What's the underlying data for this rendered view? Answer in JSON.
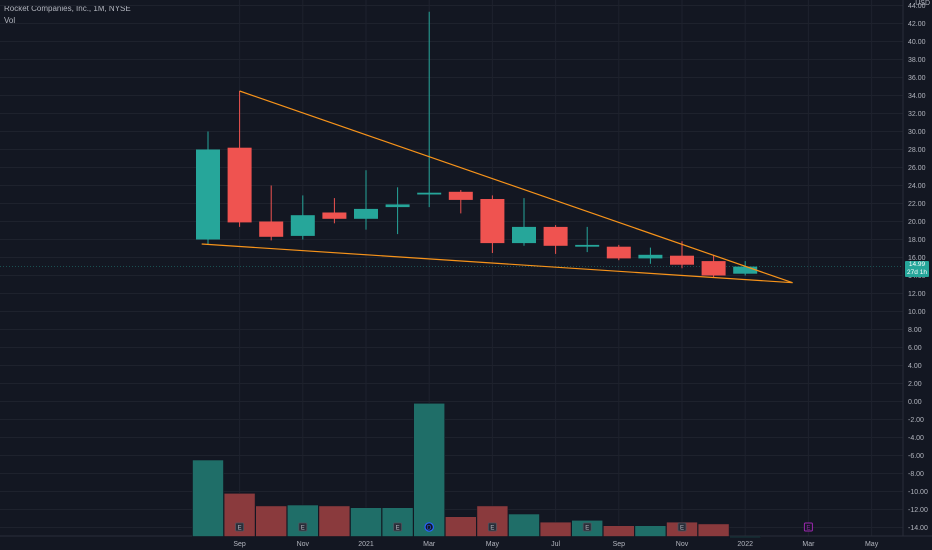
{
  "header": {
    "title": "Rocket Companies, Inc., 1M, NYSE",
    "volume_label": "Vol"
  },
  "axis": {
    "currency": "USD",
    "current_price": "14.99",
    "countdown": "27d 1h"
  },
  "colors": {
    "background": "#131722",
    "up": "#26a69a",
    "down": "#ef5350",
    "trendline": "#f7931a",
    "text": "#b2b5be",
    "event_earnings": "#b2b5be",
    "event_dividend": "#2962ff",
    "event_future": "#9c27b0"
  },
  "chart_data": {
    "type": "candlestick",
    "title": "Rocket Companies, Inc., 1M, NYSE",
    "x_tick_labels": [
      "Sep",
      "Nov",
      "2021",
      "Mar",
      "May",
      "Jul",
      "Sep",
      "Nov",
      "2022",
      "Mar",
      "May"
    ],
    "y_tick_labels": [
      "44.00",
      "42.00",
      "40.00",
      "38.00",
      "36.00",
      "34.00",
      "32.00",
      "30.00",
      "28.00",
      "26.00",
      "24.00",
      "22.00",
      "20.00",
      "18.00",
      "16.00",
      "14.00",
      "12.00",
      "10.00",
      "8.00",
      "6.00",
      "4.00",
      "2.00",
      "0.00",
      "-2.00",
      "-4.00",
      "-6.00",
      "-8.00",
      "-10.00",
      "-12.00",
      "-14.00"
    ],
    "ylim": [
      -15,
      44
    ],
    "candles": [
      {
        "month": "Aug 2020",
        "open": 18.0,
        "high": 30.0,
        "low": 17.5,
        "close": 28.0
      },
      {
        "month": "Sep 2020",
        "open": 28.2,
        "high": 34.5,
        "low": 19.4,
        "close": 19.9
      },
      {
        "month": "Oct 2020",
        "open": 20.0,
        "high": 24.0,
        "low": 17.9,
        "close": 18.3
      },
      {
        "month": "Nov 2020",
        "open": 18.4,
        "high": 22.9,
        "low": 18.0,
        "close": 20.7
      },
      {
        "month": "Dec 2020",
        "open": 21.0,
        "high": 22.6,
        "low": 19.8,
        "close": 20.3
      },
      {
        "month": "Jan 2021",
        "open": 20.3,
        "high": 25.7,
        "low": 19.1,
        "close": 21.4
      },
      {
        "month": "Feb 2021",
        "open": 21.6,
        "high": 23.8,
        "low": 18.6,
        "close": 21.9
      },
      {
        "month": "Mar 2021",
        "open": 23.0,
        "high": 43.3,
        "low": 21.6,
        "close": 23.2
      },
      {
        "month": "Apr 2021",
        "open": 23.3,
        "high": 23.5,
        "low": 20.9,
        "close": 22.4
      },
      {
        "month": "May 2021",
        "open": 22.5,
        "high": 22.9,
        "low": 16.5,
        "close": 17.6
      },
      {
        "month": "Jun 2021",
        "open": 17.6,
        "high": 22.6,
        "low": 17.3,
        "close": 19.4
      },
      {
        "month": "Jul 2021",
        "open": 19.4,
        "high": 19.6,
        "low": 16.4,
        "close": 17.3
      },
      {
        "month": "Aug 2021",
        "open": 17.2,
        "high": 19.4,
        "low": 16.6,
        "close": 17.4
      },
      {
        "month": "Sep 2021",
        "open": 17.2,
        "high": 17.4,
        "low": 15.7,
        "close": 15.9
      },
      {
        "month": "Oct 2021",
        "open": 15.9,
        "high": 17.1,
        "low": 15.3,
        "close": 16.3
      },
      {
        "month": "Nov 2021",
        "open": 16.2,
        "high": 17.8,
        "low": 14.8,
        "close": 15.2
      },
      {
        "month": "Dec 2021",
        "open": 15.6,
        "high": 16.3,
        "low": 13.8,
        "close": 14.0
      },
      {
        "month": "Jan 2022",
        "open": 14.2,
        "high": 15.6,
        "low": 14.0,
        "close": 14.99
      }
    ],
    "volume_bars": [
      {
        "month": "Aug 2020",
        "top": -6.5,
        "direction": "up"
      },
      {
        "month": "Sep 2020",
        "top": -10.2,
        "direction": "down"
      },
      {
        "month": "Oct 2020",
        "top": -11.6,
        "direction": "down"
      },
      {
        "month": "Nov 2020",
        "top": -11.5,
        "direction": "up"
      },
      {
        "month": "Dec 2020",
        "top": -11.6,
        "direction": "down"
      },
      {
        "month": "Jan 2021",
        "top": -11.8,
        "direction": "up"
      },
      {
        "month": "Feb 2021",
        "top": -11.8,
        "direction": "up"
      },
      {
        "month": "Mar 2021",
        "top": -0.2,
        "direction": "up"
      },
      {
        "month": "Apr 2021",
        "top": -12.8,
        "direction": "down"
      },
      {
        "month": "May 2021",
        "top": -11.6,
        "direction": "down"
      },
      {
        "month": "Jun 2021",
        "top": -12.5,
        "direction": "up"
      },
      {
        "month": "Jul 2021",
        "top": -13.4,
        "direction": "down"
      },
      {
        "month": "Aug 2021",
        "top": -13.2,
        "direction": "up"
      },
      {
        "month": "Sep 2021",
        "top": -13.8,
        "direction": "down"
      },
      {
        "month": "Oct 2021",
        "top": -13.8,
        "direction": "up"
      },
      {
        "month": "Nov 2021",
        "top": -13.4,
        "direction": "down"
      },
      {
        "month": "Dec 2021",
        "top": -13.6,
        "direction": "down"
      },
      {
        "month": "Jan 2022",
        "top": -15.0,
        "direction": "up"
      }
    ],
    "volume_baseline": -15.0,
    "trendlines": [
      {
        "name": "upper",
        "from": {
          "month_index": 1,
          "value": 34.5
        },
        "to": {
          "month_index": 18.5,
          "value": 13.2
        }
      },
      {
        "name": "lower",
        "from": {
          "month_index": -0.2,
          "value": 17.5
        },
        "to": {
          "month_index": 18.5,
          "value": 13.2
        }
      }
    ],
    "events": [
      {
        "month": "Sep 2020",
        "type": "earnings",
        "label": "E"
      },
      {
        "month": "Nov 2020",
        "type": "earnings",
        "label": "E"
      },
      {
        "month": "Feb 2021",
        "type": "earnings",
        "label": "E"
      },
      {
        "month": "Mar 2021",
        "type": "dividend",
        "label": "D"
      },
      {
        "month": "May 2021",
        "type": "earnings",
        "label": "E"
      },
      {
        "month": "Aug 2021",
        "type": "earnings",
        "label": "E"
      },
      {
        "month": "Nov 2021",
        "type": "earnings",
        "label": "E"
      },
      {
        "month": "Feb 2022",
        "type": "future",
        "label": "E"
      }
    ],
    "last_price_line": 14.99
  }
}
